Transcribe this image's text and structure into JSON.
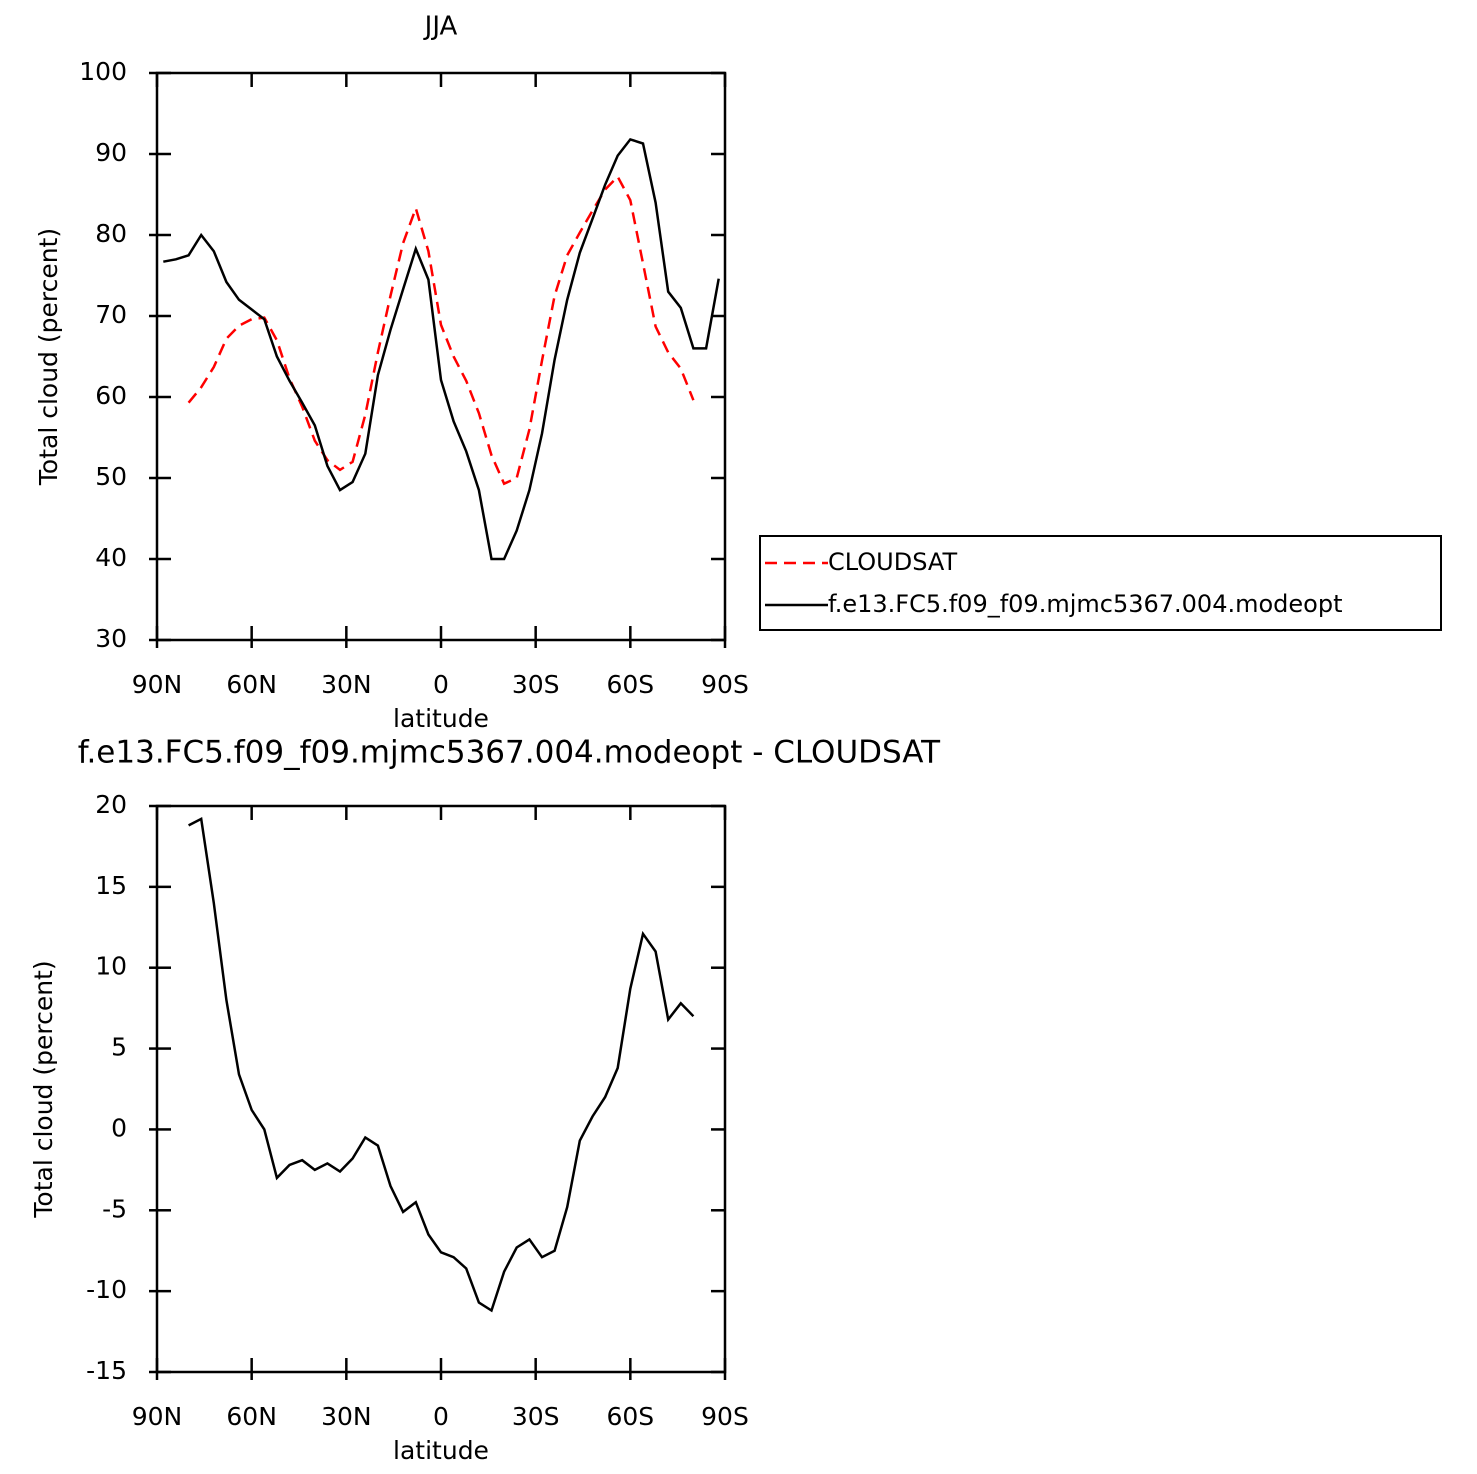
{
  "chart_data": [
    {
      "type": "line",
      "title": "JJA",
      "x_label": "latitude",
      "y_label": "Total cloud (percent)",
      "x": [
        88,
        84,
        80,
        76,
        72,
        68,
        64,
        60,
        56,
        52,
        48,
        44,
        40,
        36,
        32,
        28,
        24,
        20,
        16,
        12,
        8,
        4,
        0,
        -4,
        -8,
        -12,
        -16,
        -20,
        -24,
        -28,
        -32,
        -36,
        -40,
        -44,
        -48,
        -52,
        -56,
        -60,
        -64,
        -68,
        -72,
        -76,
        -80,
        -84,
        -88
      ],
      "series": [
        {
          "name": "CLOUDSAT",
          "color": "#ff0000",
          "dash": "dashed",
          "values": [
            null,
            null,
            59.3,
            61.2,
            63.7,
            67.2,
            68.8,
            69.6,
            69.8,
            67,
            62.3,
            58.8,
            54.6,
            52.2,
            51,
            52,
            57.8,
            65.5,
            72.5,
            79,
            83.3,
            78,
            68.9,
            65,
            62,
            58,
            52.8,
            49.3,
            50,
            56,
            64.5,
            72.5,
            77.5,
            80.3,
            83,
            85.6,
            87.2,
            84.3,
            76.5,
            68.7,
            65.5,
            63.5,
            59.6,
            null,
            null
          ]
        },
        {
          "name": "f.e13.FC5.f09_f09.mjmc5367.004.modeopt",
          "color": "#000000",
          "dash": "solid",
          "values": [
            76.7,
            77,
            77.5,
            80,
            78,
            74.2,
            72,
            70.8,
            69.6,
            65,
            62,
            59.3,
            56.5,
            51.5,
            48.5,
            49.5,
            53,
            62.7,
            68.3,
            73.3,
            78.3,
            74.5,
            62.1,
            57,
            53.3,
            48.5,
            40,
            40,
            43.5,
            48.5,
            55.5,
            64.6,
            72,
            77.8,
            82,
            86.2,
            89.8,
            91.8,
            91.3,
            84,
            73,
            71,
            66,
            66,
            74.6
          ]
        }
      ],
      "xlim": [
        90,
        -90
      ],
      "xticks": [
        {
          "value": 90,
          "label": "90N"
        },
        {
          "value": 60,
          "label": "60N"
        },
        {
          "value": 30,
          "label": "30N"
        },
        0,
        {
          "value": -30,
          "label": "30S"
        },
        {
          "value": -60,
          "label": "60S"
        },
        {
          "value": -90,
          "label": "90S"
        }
      ],
      "ylim": [
        30,
        100
      ],
      "yticks": [
        30,
        40,
        50,
        60,
        70,
        80,
        90,
        100
      ],
      "legend": "right"
    },
    {
      "type": "line",
      "title": "f.e13.FC5.f09_f09.mjmc5367.004.modeopt - CLOUDSAT",
      "x_label": "latitude",
      "y_label": "Total cloud (percent)",
      "x": [
        80,
        76,
        72,
        68,
        64,
        60,
        56,
        52,
        48,
        44,
        40,
        36,
        32,
        28,
        24,
        20,
        16,
        12,
        8,
        4,
        0,
        -4,
        -8,
        -12,
        -16,
        -20,
        -24,
        -28,
        -32,
        -36,
        -40,
        -44,
        -48,
        -52,
        -56,
        -60,
        -64,
        -68,
        -72,
        -76,
        -80
      ],
      "series": [
        {
          "color": "#000000",
          "dash": "solid",
          "values": [
            18.8,
            19.2,
            14,
            8,
            3.4,
            1.2,
            0,
            -3,
            -2.2,
            -1.9,
            -2.5,
            -2.1,
            -2.6,
            -1.8,
            -0.5,
            -1,
            -3.5,
            -5.1,
            -4.5,
            -6.5,
            -7.6,
            -7.9,
            -8.6,
            -10.7,
            -11.2,
            -8.8,
            -7.3,
            -6.8,
            -7.9,
            -7.5,
            -4.8,
            -0.7,
            0.8,
            2,
            3.8,
            8.7,
            12.1,
            11,
            6.8,
            7.8,
            7
          ]
        }
      ],
      "xlim": [
        90,
        -90
      ],
      "xticks": [
        {
          "value": 90,
          "label": "90N"
        },
        {
          "value": 60,
          "label": "60N"
        },
        {
          "value": 30,
          "label": "30N"
        },
        0,
        {
          "value": -30,
          "label": "30S"
        },
        {
          "value": -60,
          "label": "60S"
        },
        {
          "value": -90,
          "label": "90S"
        }
      ],
      "ylim": [
        -15,
        20
      ],
      "yticks": [
        -15,
        -10,
        -5,
        0,
        5,
        10,
        15,
        20
      ]
    }
  ]
}
